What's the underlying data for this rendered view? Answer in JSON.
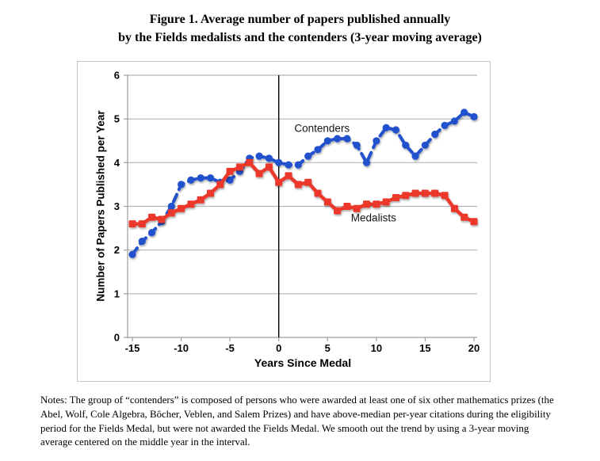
{
  "figure": {
    "title_line1": "Figure 1. Average number of papers published annually",
    "title_line2": "by the Fields medalists and the contenders (3-year moving average)",
    "notes": "Notes: The group of “contenders” is composed of persons who were awarded at least one of six other mathematics prizes (the Abel, Wolf, Cole Algebra, Bôcher, Veblen, and Salem Prizes) and have above-median per-year citations during the eligibility period for the Fields Medal, but were not awarded the Fields Medal. We smooth out the trend by using a 3-year moving average centered on the middle year in the interval."
  },
  "chart_data": {
    "type": "line",
    "title": "Figure 1. Average number of papers published annually by the Fields medalists and the contenders (3-year moving average)",
    "xlabel": "Years Since Medal",
    "ylabel": "Number of Papers Published per Year",
    "xlim": [
      -15.5,
      20.4
    ],
    "ylim": [
      0,
      6
    ],
    "x_ticks": [
      -15,
      -10,
      -5,
      0,
      5,
      10,
      15,
      20
    ],
    "y_ticks": [
      0,
      1,
      2,
      3,
      4,
      5,
      6
    ],
    "grid": "horizontal",
    "zero_vline": true,
    "legend_position": "inline-annotations",
    "x": [
      -15,
      -14,
      -13,
      -12,
      -11,
      -10,
      -9,
      -8,
      -7,
      -6,
      -5,
      -4,
      -3,
      -2,
      -1,
      0,
      1,
      2,
      3,
      4,
      5,
      6,
      7,
      8,
      9,
      10,
      11,
      12,
      13,
      14,
      15,
      16,
      17,
      18,
      19,
      20
    ],
    "series": [
      {
        "name": "Contenders",
        "color": "#2351ce",
        "style": "dashed",
        "marker": "circle",
        "values": [
          1.9,
          2.2,
          2.4,
          2.65,
          3.0,
          3.5,
          3.6,
          3.65,
          3.65,
          3.55,
          3.6,
          3.8,
          4.1,
          4.15,
          4.1,
          4.0,
          3.95,
          3.95,
          4.15,
          4.3,
          4.5,
          4.55,
          4.55,
          4.4,
          4.0,
          4.5,
          4.8,
          4.75,
          4.4,
          4.15,
          4.4,
          4.65,
          4.85,
          4.95,
          5.15,
          5.05
        ]
      },
      {
        "name": "Medalists",
        "color": "#eb392c",
        "style": "solid",
        "marker": "square",
        "values": [
          2.6,
          2.6,
          2.75,
          2.7,
          2.85,
          2.95,
          3.05,
          3.15,
          3.3,
          3.5,
          3.8,
          3.9,
          4.0,
          3.75,
          3.9,
          3.55,
          3.7,
          3.5,
          3.55,
          3.3,
          3.1,
          2.9,
          3.0,
          2.95,
          3.05,
          3.05,
          3.1,
          3.2,
          3.25,
          3.3,
          3.3,
          3.3,
          3.25,
          2.95,
          2.75,
          2.65
        ]
      }
    ],
    "annotations": [
      {
        "text": "Contenders",
        "x": 1.6,
        "y": 4.7
      },
      {
        "text": "Medalists",
        "x": 7.4,
        "y": 2.66
      }
    ],
    "colors": {
      "grid": "#b5b5b5",
      "axis": "#9e9e9e",
      "zero_line": "#000000",
      "frame": "#c5c5c5"
    }
  }
}
